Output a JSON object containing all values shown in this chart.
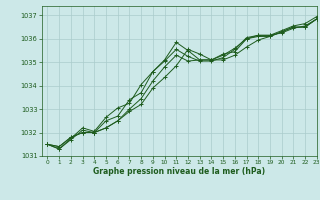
{
  "title": "Graphe pression niveau de la mer (hPa)",
  "bg_color": "#cce8e8",
  "grid_color": "#aacccc",
  "line_color": "#1e5c1e",
  "xlim": [
    -0.5,
    23
  ],
  "ylim": [
    1031,
    1037.4
  ],
  "yticks": [
    1031,
    1032,
    1033,
    1034,
    1035,
    1036,
    1037
  ],
  "xticks": [
    0,
    1,
    2,
    3,
    4,
    5,
    6,
    7,
    8,
    9,
    10,
    11,
    12,
    13,
    14,
    15,
    16,
    17,
    18,
    19,
    20,
    21,
    22,
    23
  ],
  "series": [
    [
      1031.5,
      1031.3,
      1031.7,
      1032.1,
      1032.0,
      1032.5,
      1032.7,
      1033.4,
      1033.7,
      1034.6,
      1035.1,
      1035.85,
      1035.5,
      1035.1,
      1035.1,
      1035.35,
      1035.45,
      1036.0,
      1036.15,
      1036.15,
      1036.35,
      1036.55,
      1036.65,
      1036.95
    ],
    [
      1031.5,
      1031.3,
      1031.75,
      1032.2,
      1032.05,
      1032.65,
      1033.05,
      1033.25,
      1034.05,
      1034.6,
      1035.05,
      1035.55,
      1035.25,
      1035.05,
      1035.05,
      1035.2,
      1035.55,
      1036.05,
      1036.15,
      1036.15,
      1036.25,
      1036.45,
      1036.55,
      1036.85
    ],
    [
      1031.5,
      1031.4,
      1031.8,
      1032.0,
      1032.0,
      1032.2,
      1032.5,
      1032.9,
      1033.2,
      1033.9,
      1034.35,
      1034.85,
      1035.55,
      1035.35,
      1035.1,
      1035.1,
      1035.3,
      1035.65,
      1035.95,
      1036.1,
      1036.3,
      1036.5,
      1036.5,
      1036.85
    ],
    [
      1031.5,
      1031.4,
      1031.8,
      1032.0,
      1032.0,
      1032.2,
      1032.5,
      1033.0,
      1033.45,
      1034.2,
      1034.8,
      1035.3,
      1035.05,
      1035.1,
      1035.1,
      1035.3,
      1035.6,
      1036.0,
      1036.1,
      1036.1,
      1036.3,
      1036.5,
      1036.5,
      1036.85
    ]
  ]
}
